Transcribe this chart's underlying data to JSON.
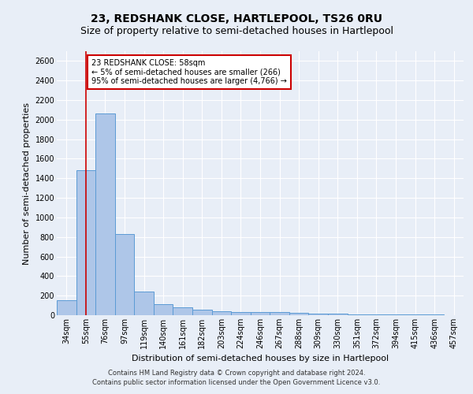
{
  "title_line1": "23, REDSHANK CLOSE, HARTLEPOOL, TS26 0RU",
  "title_line2": "Size of property relative to semi-detached houses in Hartlepool",
  "xlabel": "Distribution of semi-detached houses by size in Hartlepool",
  "ylabel": "Number of semi-detached properties",
  "categories": [
    "34sqm",
    "55sqm",
    "76sqm",
    "97sqm",
    "119sqm",
    "140sqm",
    "161sqm",
    "182sqm",
    "203sqm",
    "224sqm",
    "246sqm",
    "267sqm",
    "288sqm",
    "309sqm",
    "330sqm",
    "351sqm",
    "372sqm",
    "394sqm",
    "415sqm",
    "436sqm",
    "457sqm"
  ],
  "values": [
    150,
    1480,
    2060,
    830,
    245,
    115,
    80,
    55,
    40,
    35,
    30,
    30,
    25,
    20,
    15,
    12,
    10,
    8,
    6,
    5,
    4
  ],
  "bar_color": "#aec6e8",
  "bar_edge_color": "#5b9bd5",
  "property_line_x": 1.0,
  "property_line_color": "#cc0000",
  "annotation_text": "23 REDSHANK CLOSE: 58sqm\n← 5% of semi-detached houses are smaller (266)\n95% of semi-detached houses are larger (4,766) →",
  "annotation_box_color": "#ffffff",
  "annotation_box_edgecolor": "#cc0000",
  "footnote": "Contains HM Land Registry data © Crown copyright and database right 2024.\nContains public sector information licensed under the Open Government Licence v3.0.",
  "ylim": [
    0,
    2700
  ],
  "background_color": "#e8eef7",
  "plot_background_color": "#e8eef7",
  "grid_color": "#ffffff",
  "title_fontsize": 10,
  "subtitle_fontsize": 9,
  "ylabel_fontsize": 8,
  "xlabel_fontsize": 8,
  "tick_fontsize": 7,
  "annot_fontsize": 7,
  "footnote_fontsize": 6
}
